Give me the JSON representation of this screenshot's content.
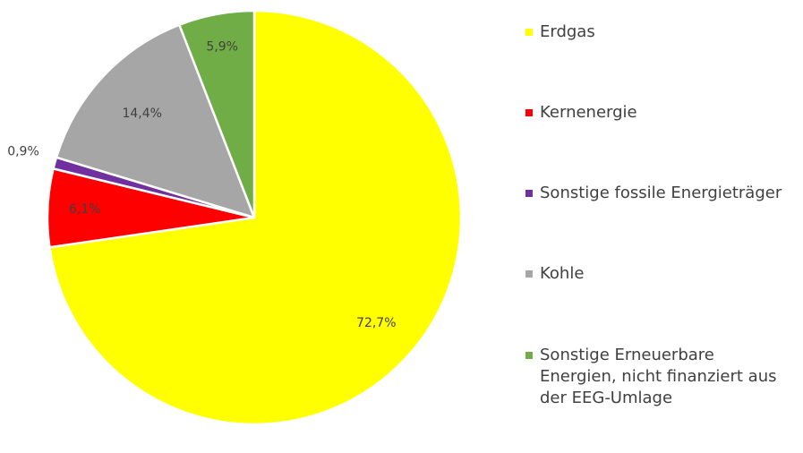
{
  "chart_data": {
    "type": "pie",
    "start_angle_deg": 0,
    "direction": "clockwise",
    "slices": [
      {
        "name": "Erdgas",
        "value": 72.7,
        "label": "72,7%",
        "color": "#FFFF00"
      },
      {
        "name": "Kernenergie",
        "value": 6.1,
        "label": "6,1%",
        "color": "#FF0000"
      },
      {
        "name": "Sonstige fossile Energieträger",
        "value": 0.9,
        "label": "0,9%",
        "color": "#7030A0"
      },
      {
        "name": "Kohle",
        "value": 14.4,
        "label": "14,4%",
        "color": "#A6A6A6"
      },
      {
        "name": "Sonstige Erneuerbare Energien, nicht finanziert aus der EEG-Umlage",
        "value": 5.9,
        "label": "5,9%",
        "color": "#70AD47"
      }
    ],
    "legend_position": "right"
  }
}
